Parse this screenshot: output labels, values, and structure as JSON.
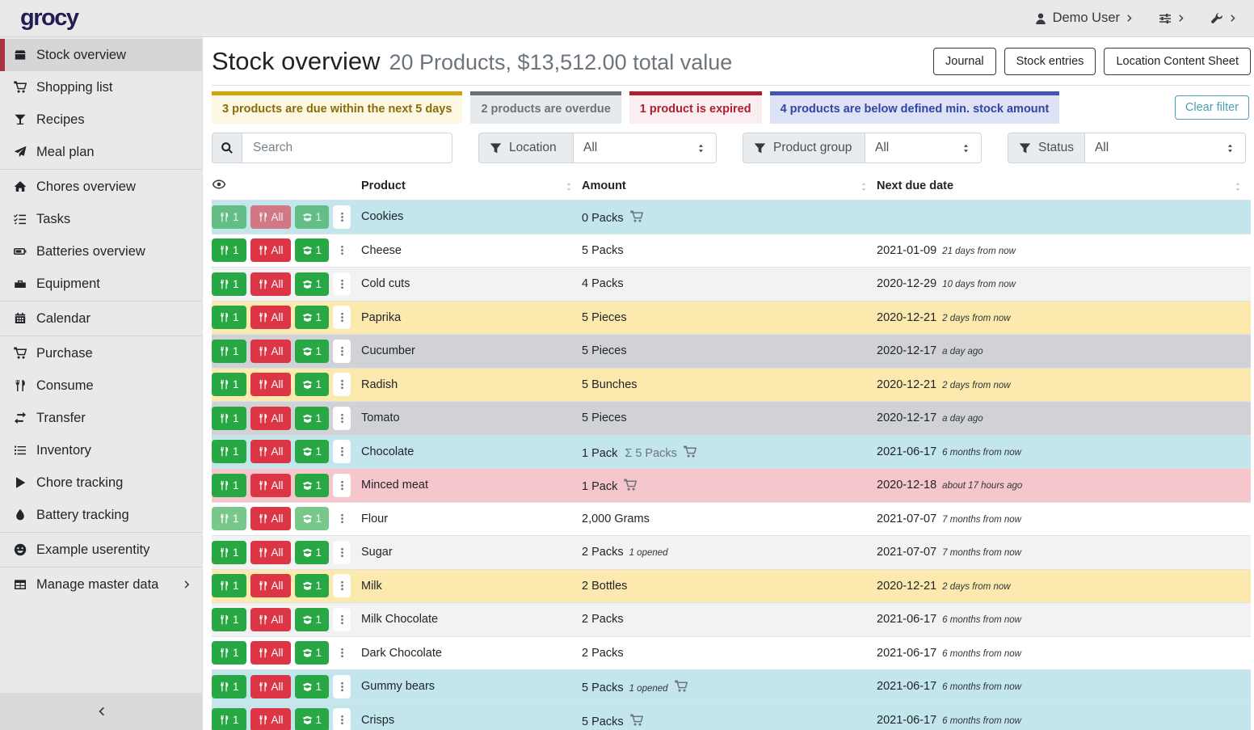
{
  "navbar": {
    "logo": "grocy",
    "user_label": "Demo User"
  },
  "sidebar": {
    "items": [
      {
        "label": "Stock overview",
        "icon": "box",
        "active": true
      },
      {
        "label": "Shopping list",
        "icon": "cart"
      },
      {
        "label": "Recipes",
        "icon": "cocktail"
      },
      {
        "label": "Meal plan",
        "icon": "plane",
        "divider_after": true
      },
      {
        "label": "Chores overview",
        "icon": "home"
      },
      {
        "label": "Tasks",
        "icon": "tasks"
      },
      {
        "label": "Batteries overview",
        "icon": "battery"
      },
      {
        "label": "Equipment",
        "icon": "toolbox",
        "divider_after": true
      },
      {
        "label": "Calendar",
        "icon": "calendar",
        "divider_after": true
      },
      {
        "label": "Purchase",
        "icon": "cart"
      },
      {
        "label": "Consume",
        "icon": "utensils"
      },
      {
        "label": "Transfer",
        "icon": "exchange"
      },
      {
        "label": "Inventory",
        "icon": "list"
      },
      {
        "label": "Chore tracking",
        "icon": "play"
      },
      {
        "label": "Battery tracking",
        "icon": "droplet",
        "divider_after": true
      },
      {
        "label": "Example userentity",
        "icon": "smiley",
        "divider_after": true
      },
      {
        "label": "Manage master data",
        "icon": "table",
        "chevron": true
      }
    ]
  },
  "page_header": {
    "title": "Stock overview",
    "subtitle": "20 Products, $13,512.00 total value",
    "actions": [
      "Journal",
      "Stock entries",
      "Location Content Sheet"
    ]
  },
  "filter_badges": [
    {
      "text": "3 products are due within the next 5 days",
      "accent": "#d2a20a",
      "bg": "#fdf8e3",
      "fg": "#8a6d0b"
    },
    {
      "text": "2 products are overdue",
      "accent": "#687076",
      "bg": "#e7eaec",
      "fg": "#6a737b"
    },
    {
      "text": "1 product is expired",
      "accent": "#b01f2e",
      "bg": "#fbeef0",
      "fg": "#b01f2e"
    },
    {
      "text": "4 products are below defined min. stock amount",
      "accent": "#4355b2",
      "bg": "#dde3f5",
      "fg": "#3344a8"
    }
  ],
  "clear_filter_label": "Clear filter",
  "search": {
    "placeholder": "Search"
  },
  "dropdown_filters": [
    {
      "label": "Location",
      "value": "All"
    },
    {
      "label": "Product group",
      "value": "All"
    },
    {
      "label": "Status",
      "value": "All"
    }
  ],
  "table": {
    "columns": [
      "Product",
      "Amount",
      "Next due date"
    ],
    "action_labels": {
      "consume_one": "1",
      "consume_all": "All",
      "open_one": "1"
    },
    "rows": [
      {
        "product": "Cookies",
        "amount": "0 Packs",
        "cart": true,
        "status": "info",
        "disabled": [
          "consume_one",
          "consume_all",
          "open_one"
        ],
        "date": "",
        "relative": ""
      },
      {
        "product": "Cheese",
        "amount": "5 Packs",
        "status": "",
        "date": "2021-01-09",
        "relative": "21 days from now"
      },
      {
        "product": "Cold cuts",
        "amount": "4 Packs",
        "status": "stripe",
        "date": "2020-12-29",
        "relative": "10 days from now"
      },
      {
        "product": "Paprika",
        "amount": "5 Pieces",
        "status": "warning",
        "date": "2020-12-21",
        "relative": "2 days from now"
      },
      {
        "product": "Cucumber",
        "amount": "5 Pieces",
        "status": "secondary",
        "date": "2020-12-17",
        "relative": "a day ago"
      },
      {
        "product": "Radish",
        "amount": "5 Bunches",
        "status": "warning",
        "date": "2020-12-21",
        "relative": "2 days from now"
      },
      {
        "product": "Tomato",
        "amount": "5 Pieces",
        "status": "secondary",
        "date": "2020-12-17",
        "relative": "a day ago"
      },
      {
        "product": "Chocolate",
        "amount": "1 Pack",
        "amount_total": "Σ 5 Packs",
        "cart": true,
        "status": "info",
        "date": "2021-06-17",
        "relative": "6 months from now"
      },
      {
        "product": "Minced meat",
        "amount": "1 Pack",
        "cart": true,
        "status": "danger",
        "date": "2020-12-18",
        "relative": "about 17 hours ago"
      },
      {
        "product": "Flour",
        "amount": "2,000 Grams",
        "status": "",
        "disabled": [
          "consume_one",
          "open_one"
        ],
        "date": "2021-07-07",
        "relative": "7 months from now"
      },
      {
        "product": "Sugar",
        "amount": "2 Packs",
        "opened": "1 opened",
        "status": "stripe",
        "date": "2021-07-07",
        "relative": "7 months from now"
      },
      {
        "product": "Milk",
        "amount": "2 Bottles",
        "status": "warning",
        "date": "2020-12-21",
        "relative": "2 days from now"
      },
      {
        "product": "Milk Chocolate",
        "amount": "2 Packs",
        "status": "stripe",
        "date": "2021-06-17",
        "relative": "6 months from now"
      },
      {
        "product": "Dark Chocolate",
        "amount": "2 Packs",
        "status": "",
        "date": "2021-06-17",
        "relative": "6 months from now"
      },
      {
        "product": "Gummy bears",
        "amount": "5 Packs",
        "opened": "1 opened",
        "cart": true,
        "status": "info",
        "date": "2021-06-17",
        "relative": "6 months from now"
      },
      {
        "product": "Crisps",
        "amount": "5 Packs",
        "cart": true,
        "status": "info",
        "date": "2021-06-17",
        "relative": "6 months from now"
      }
    ]
  }
}
